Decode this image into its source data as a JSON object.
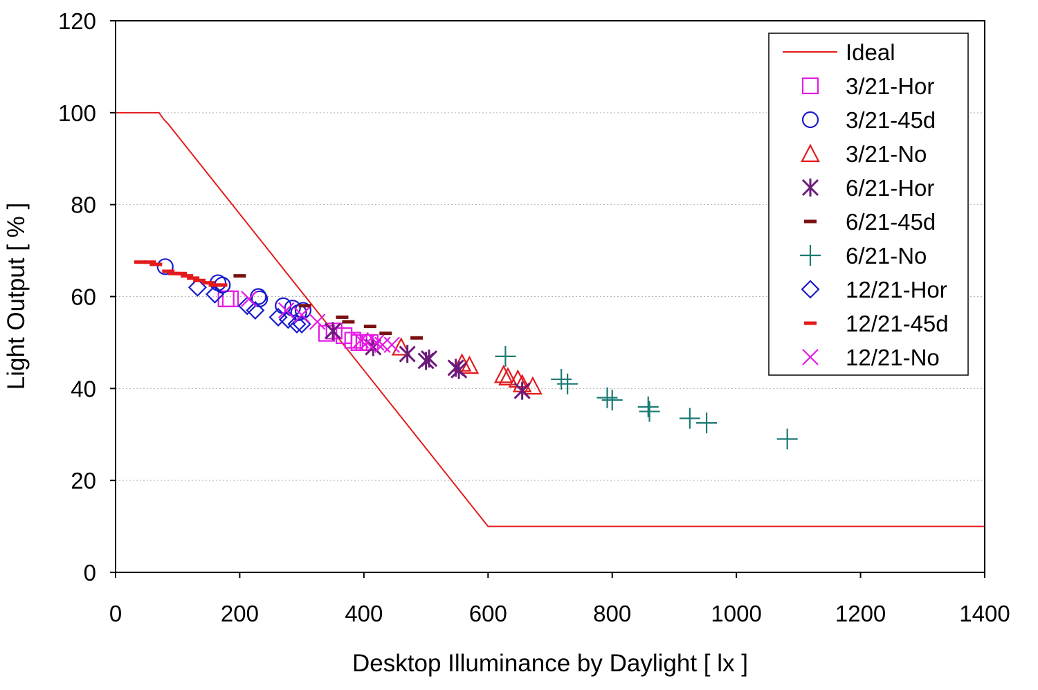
{
  "chart_data": {
    "type": "scatter",
    "title": "",
    "xlabel": "Desktop Illuminance by Daylight [ lx ]",
    "ylabel": "Light Output [ % ]",
    "xlim": [
      0,
      1400
    ],
    "ylim": [
      0,
      120
    ],
    "xticks": [
      "0",
      "200",
      "400",
      "600",
      "800",
      "1000",
      "1200",
      "1400"
    ],
    "yticks": [
      "0",
      "20",
      "40",
      "60",
      "80",
      "100",
      "120"
    ],
    "grid": "horizontal dotted",
    "legend_position": "top-right",
    "line": {
      "name": "Ideal",
      "color": "#e31a1c",
      "x": [
        0,
        70,
        78,
        85,
        600,
        1400
      ],
      "y": [
        100,
        100,
        98.5,
        97.5,
        10,
        10
      ]
    },
    "series": [
      {
        "name": "3/21-Hor",
        "marker": "square",
        "color": "#e619e6",
        "x": [
          178,
          185,
          340,
          352,
          368,
          382,
          392,
          400,
          410
        ],
        "y": [
          59.5,
          59.5,
          52,
          52.5,
          51.5,
          50.5,
          50,
          50,
          50
        ]
      },
      {
        "name": "3/21-45d",
        "marker": "circle",
        "color": "#1a1acc",
        "x": [
          80,
          165,
          172,
          230,
          232,
          270,
          285,
          295,
          302
        ],
        "y": [
          66.5,
          63,
          62.5,
          60,
          59.5,
          58,
          57.5,
          56.5,
          57
        ]
      },
      {
        "name": "3/21-No",
        "marker": "triangle",
        "color": "#e31a1c",
        "x": [
          460,
          558,
          570,
          625,
          632,
          648,
          655,
          672
        ],
        "y": [
          49,
          45.5,
          45,
          43,
          42.5,
          42,
          41,
          40.5
        ]
      },
      {
        "name": "6/21-Hor",
        "marker": "asterisk",
        "color": "#6b1a7a",
        "x": [
          350,
          415,
          470,
          500,
          505,
          548,
          553,
          655
        ],
        "y": [
          52.5,
          49,
          47.5,
          46,
          46.5,
          44.5,
          44,
          39.5
        ]
      },
      {
        "name": "6/21-45d",
        "marker": "dash",
        "color": "#7a1010",
        "x": [
          200,
          305,
          365,
          375,
          410,
          435,
          485
        ],
        "y": [
          64.5,
          58,
          55.5,
          54.5,
          53.5,
          52,
          51
        ]
      },
      {
        "name": "6/21-No",
        "marker": "plus",
        "color": "#1a7a74",
        "x": [
          628,
          718,
          728,
          792,
          800,
          858,
          860,
          925,
          952,
          1082
        ],
        "y": [
          47,
          42,
          41,
          38,
          37.5,
          36,
          35,
          33.5,
          32.5,
          29
        ]
      },
      {
        "name": "12/21-Hor",
        "marker": "diamond",
        "color": "#1a1acc",
        "x": [
          132,
          160,
          212,
          225,
          262,
          278,
          292,
          300
        ],
        "y": [
          62,
          60.5,
          58,
          57,
          55.5,
          55,
          54,
          54
        ]
      },
      {
        "name": "12/21-45d",
        "marker": "dash",
        "color": "#e31a1c",
        "x": [
          40,
          55,
          65,
          85,
          95,
          105,
          115,
          125,
          135,
          150,
          160,
          170
        ],
        "y": [
          67.5,
          67.5,
          67,
          65.5,
          65,
          65,
          64.5,
          64,
          63.5,
          63,
          62.5,
          62.5
        ]
      },
      {
        "name": "12/21-No",
        "marker": "x",
        "color": "#e619e6",
        "x": [
          215,
          275,
          300,
          325,
          395,
          405,
          420,
          430,
          445
        ],
        "y": [
          59.5,
          57,
          56,
          54.5,
          50.5,
          50,
          50,
          49.5,
          49.5
        ]
      }
    ]
  }
}
